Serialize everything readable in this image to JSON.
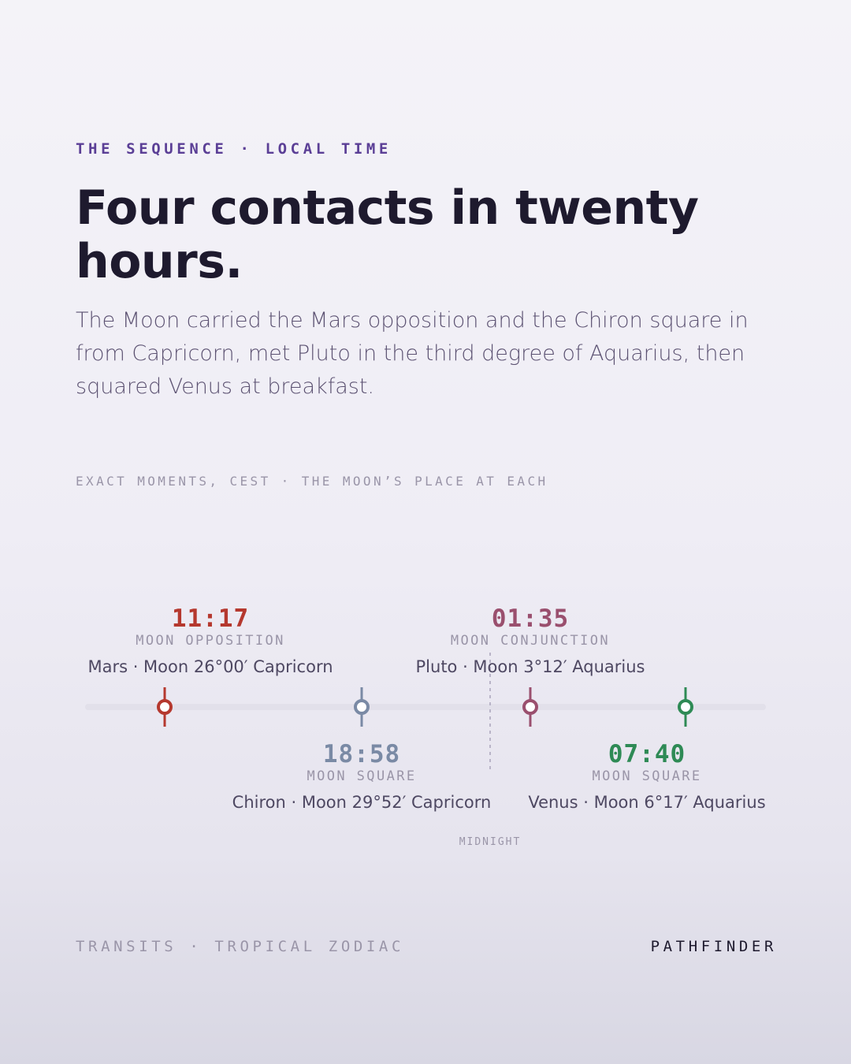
{
  "header": {
    "eyebrow": "THE SEQUENCE · LOCAL TIME",
    "title": "Four contacts in twenty hours.",
    "lede": "The Moon carried the Mars opposition and the Chiron square in from Capricorn, met Pluto in the third degree of Aquarius, then squared Venus at breakfast."
  },
  "caption": "EXACT MOMENTS, CEST · THE MOON’S PLACE AT EACH",
  "events": [
    {
      "time": "11:17",
      "aspect": "MOON OPPOSITION",
      "detail": "Mars · Moon 26°00′ Capricorn"
    },
    {
      "time": "18:58",
      "aspect": "MOON SQUARE",
      "detail": "Chiron · Moon 29°52′ Capricorn"
    },
    {
      "time": "01:35",
      "aspect": "MOON CONJUNCTION",
      "detail": "Pluto · Moon 3°12′ Aquarius"
    },
    {
      "time": "07:40",
      "aspect": "MOON SQUARE",
      "detail": "Venus · Moon 6°17′ Aquarius"
    }
  ],
  "midnight_label": "MIDNIGHT",
  "footer": {
    "left": "TRANSITS · TROPICAL ZODIAC",
    "right": "PATHFINDER"
  }
}
